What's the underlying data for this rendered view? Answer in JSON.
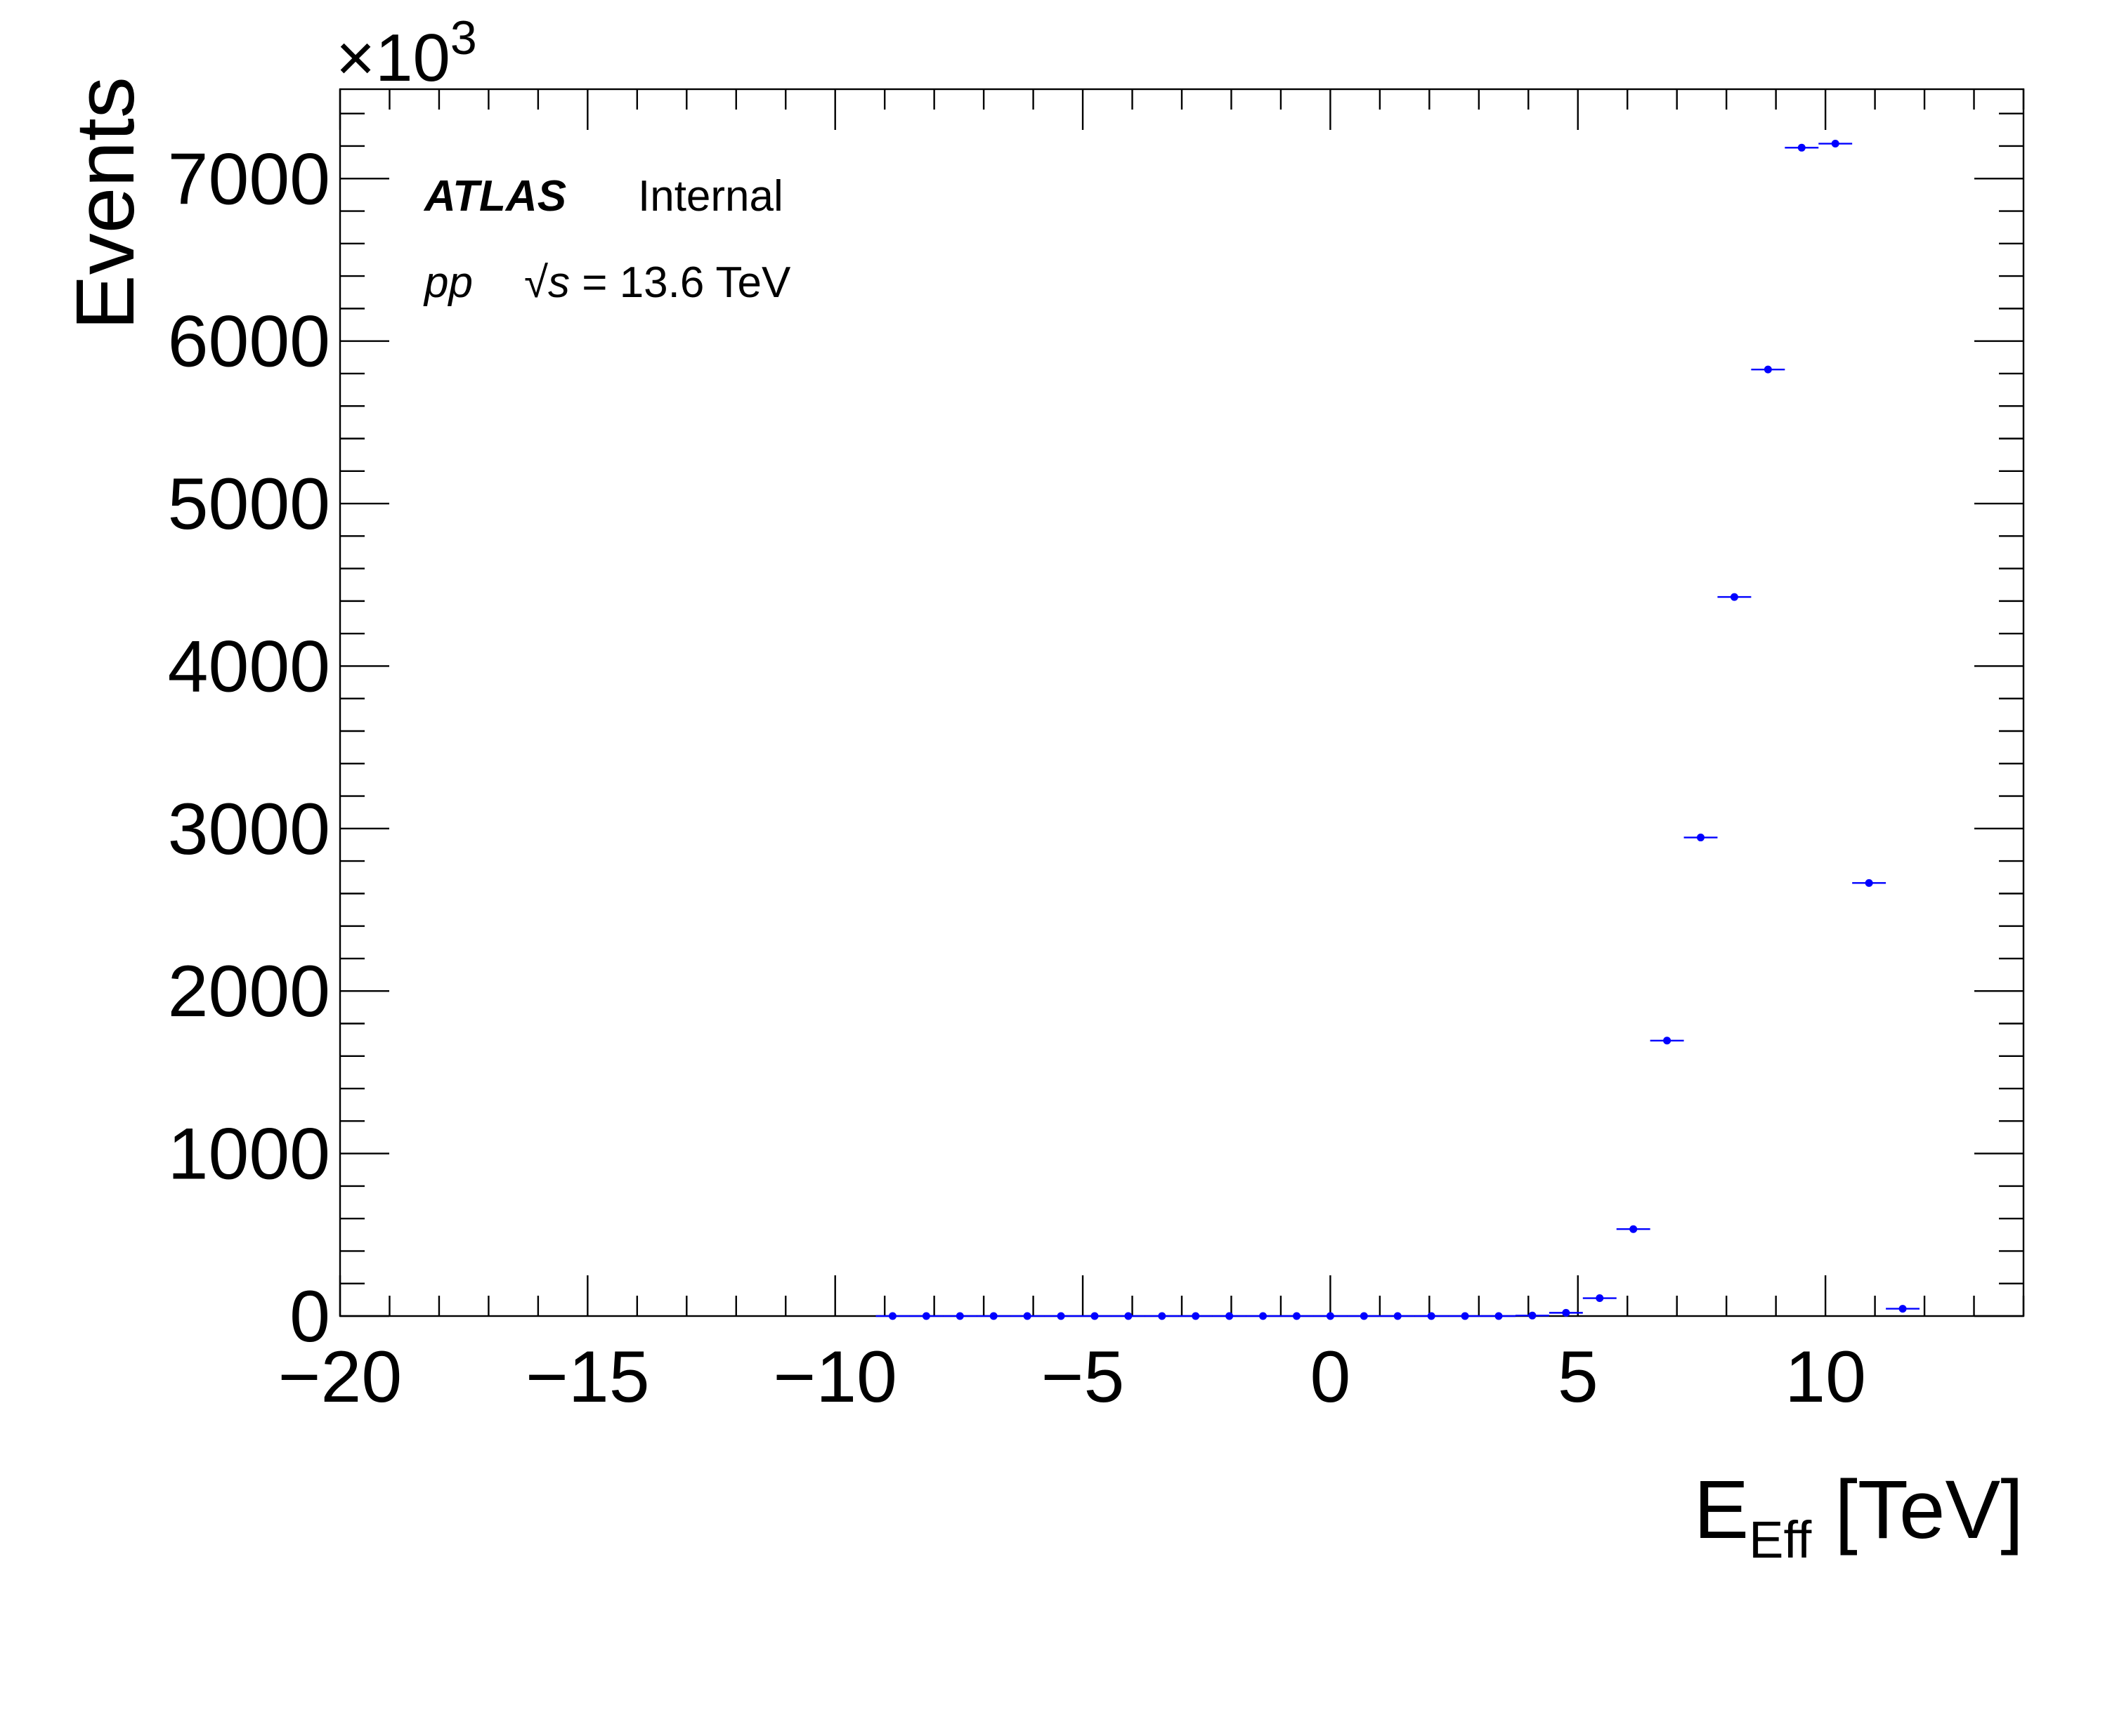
{
  "chart_data": {
    "type": "scatter",
    "xlabel": "E",
    "xlabel_sub": "Eff",
    "xlabel_unit": "[TeV]",
    "ylabel": "Events",
    "y_multiplier": "×10",
    "y_multiplier_exp": "3",
    "xlim": [
      -20,
      14
    ],
    "ylim": [
      0,
      7550
    ],
    "x_ticks": [
      -20,
      -15,
      -10,
      -5,
      0,
      5,
      10
    ],
    "x_tick_labels": [
      "−20",
      "−15",
      "−10",
      "−5",
      "0",
      "5",
      "10"
    ],
    "y_ticks": [
      0,
      1000,
      2000,
      3000,
      4000,
      5000,
      6000,
      7000
    ],
    "y_tick_labels": [
      "0",
      "1000",
      "2000",
      "3000",
      "4000",
      "5000",
      "6000",
      "7000"
    ],
    "x_minor_step": 1,
    "y_minor_step": 200,
    "bin_width": 0.68,
    "marker_color": "#0000ff",
    "points": [
      {
        "x": -8.84,
        "y": 0
      },
      {
        "x": -8.16,
        "y": 0
      },
      {
        "x": -7.48,
        "y": 0
      },
      {
        "x": -6.8,
        "y": 0
      },
      {
        "x": -6.12,
        "y": 0
      },
      {
        "x": -5.44,
        "y": 0
      },
      {
        "x": -4.76,
        "y": 0
      },
      {
        "x": -4.08,
        "y": 0
      },
      {
        "x": -3.4,
        "y": 0
      },
      {
        "x": -2.72,
        "y": 0
      },
      {
        "x": -2.04,
        "y": 0
      },
      {
        "x": -1.36,
        "y": 0
      },
      {
        "x": -0.68,
        "y": 0
      },
      {
        "x": 0.0,
        "y": 0
      },
      {
        "x": 0.68,
        "y": 0
      },
      {
        "x": 1.36,
        "y": 0
      },
      {
        "x": 2.04,
        "y": 0
      },
      {
        "x": 2.72,
        "y": 0
      },
      {
        "x": 3.4,
        "y": 0
      },
      {
        "x": 4.08,
        "y": 3
      },
      {
        "x": 4.76,
        "y": 20
      },
      {
        "x": 5.44,
        "y": 110
      },
      {
        "x": 6.12,
        "y": 535
      },
      {
        "x": 6.8,
        "y": 1695
      },
      {
        "x": 7.48,
        "y": 2945
      },
      {
        "x": 8.16,
        "y": 4425
      },
      {
        "x": 8.84,
        "y": 5825
      },
      {
        "x": 9.52,
        "y": 7190
      },
      {
        "x": 10.2,
        "y": 7215
      },
      {
        "x": 10.88,
        "y": 2665
      },
      {
        "x": 11.56,
        "y": 45
      }
    ]
  },
  "atlas_label": {
    "experiment": "ATLAS",
    "status": "Internal",
    "collision": "pp",
    "energy_prefix": "√",
    "energy_var": "s",
    "energy_value": " = 13.6 TeV"
  }
}
